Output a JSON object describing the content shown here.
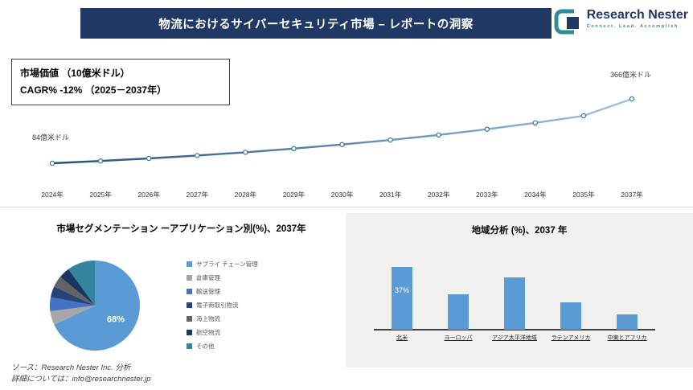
{
  "header": {
    "title": "物流におけるサイバーセキュリティ市場 – レポートの洞察"
  },
  "logo": {
    "brand": "Research Nester",
    "tagline": "Connect. Lead. Accomplish"
  },
  "market_box": {
    "line1": "市場価値 （10億米ドル）",
    "line2": "CAGR% -12% （2025－2037年）"
  },
  "footer": {
    "source": "ソース：Research Nester Inc. 分析",
    "contact": "詳細については：info@researchnester.jp"
  },
  "colors": {
    "banner": "#1f3864",
    "accent_blue": "#5b9bd5",
    "line_start": "#1f4e79",
    "line_end": "#9dc3e6",
    "marker_stroke": "#2e75b6",
    "panel_gray": "#f1f1f1",
    "teal": "#2e8b9a"
  },
  "chart_data": [
    {
      "type": "line",
      "title": "市場価値 （10億米ドル）",
      "x": [
        "2024年",
        "2025年",
        "2026年",
        "2027年",
        "2028年",
        "2029年",
        "2030年",
        "2031年",
        "2032年",
        "2033年",
        "2034年",
        "2035年",
        "2037年"
      ],
      "values": [
        84,
        94,
        105,
        118,
        132,
        148,
        166,
        186,
        208,
        233,
        261,
        292,
        366
      ],
      "start_label": "84億米ドル",
      "end_label": "366億米ドル",
      "ylim": [
        0,
        400
      ],
      "grid": false,
      "cagr_note": "CAGR% -12% （2025－2037年）"
    },
    {
      "type": "pie",
      "title": "市場セグメンテーション ーアプリケーション別(%)、2037年",
      "shown_label": "68%",
      "legend_position": "right",
      "segments": [
        {
          "label": "サプライ チェーン管理",
          "value": 68,
          "color": "#5b9bd5"
        },
        {
          "label": "倉庫管理",
          "value": 5,
          "color": "#a6a6a6"
        },
        {
          "label": "輸送管理",
          "value": 5,
          "color": "#4472c4"
        },
        {
          "label": "電子商取引物流",
          "value": 4,
          "color": "#264478"
        },
        {
          "label": "海上物流",
          "value": 4,
          "color": "#636363"
        },
        {
          "label": "航空物流",
          "value": 4,
          "color": "#17375e"
        },
        {
          "label": "その他",
          "value": 10,
          "color": "#31859c"
        }
      ]
    },
    {
      "type": "bar",
      "title": "地域分析 (%)、2037 年",
      "categories": [
        "北米",
        "ヨーロッパ",
        "アジア太平洋地域",
        "ラテンアメリカ",
        "中東とアフリカ"
      ],
      "values": [
        37,
        21,
        31,
        16,
        9
      ],
      "shown_label": "37%",
      "bar_color": "#5b9bd5",
      "ylim": [
        0,
        40
      ]
    }
  ]
}
